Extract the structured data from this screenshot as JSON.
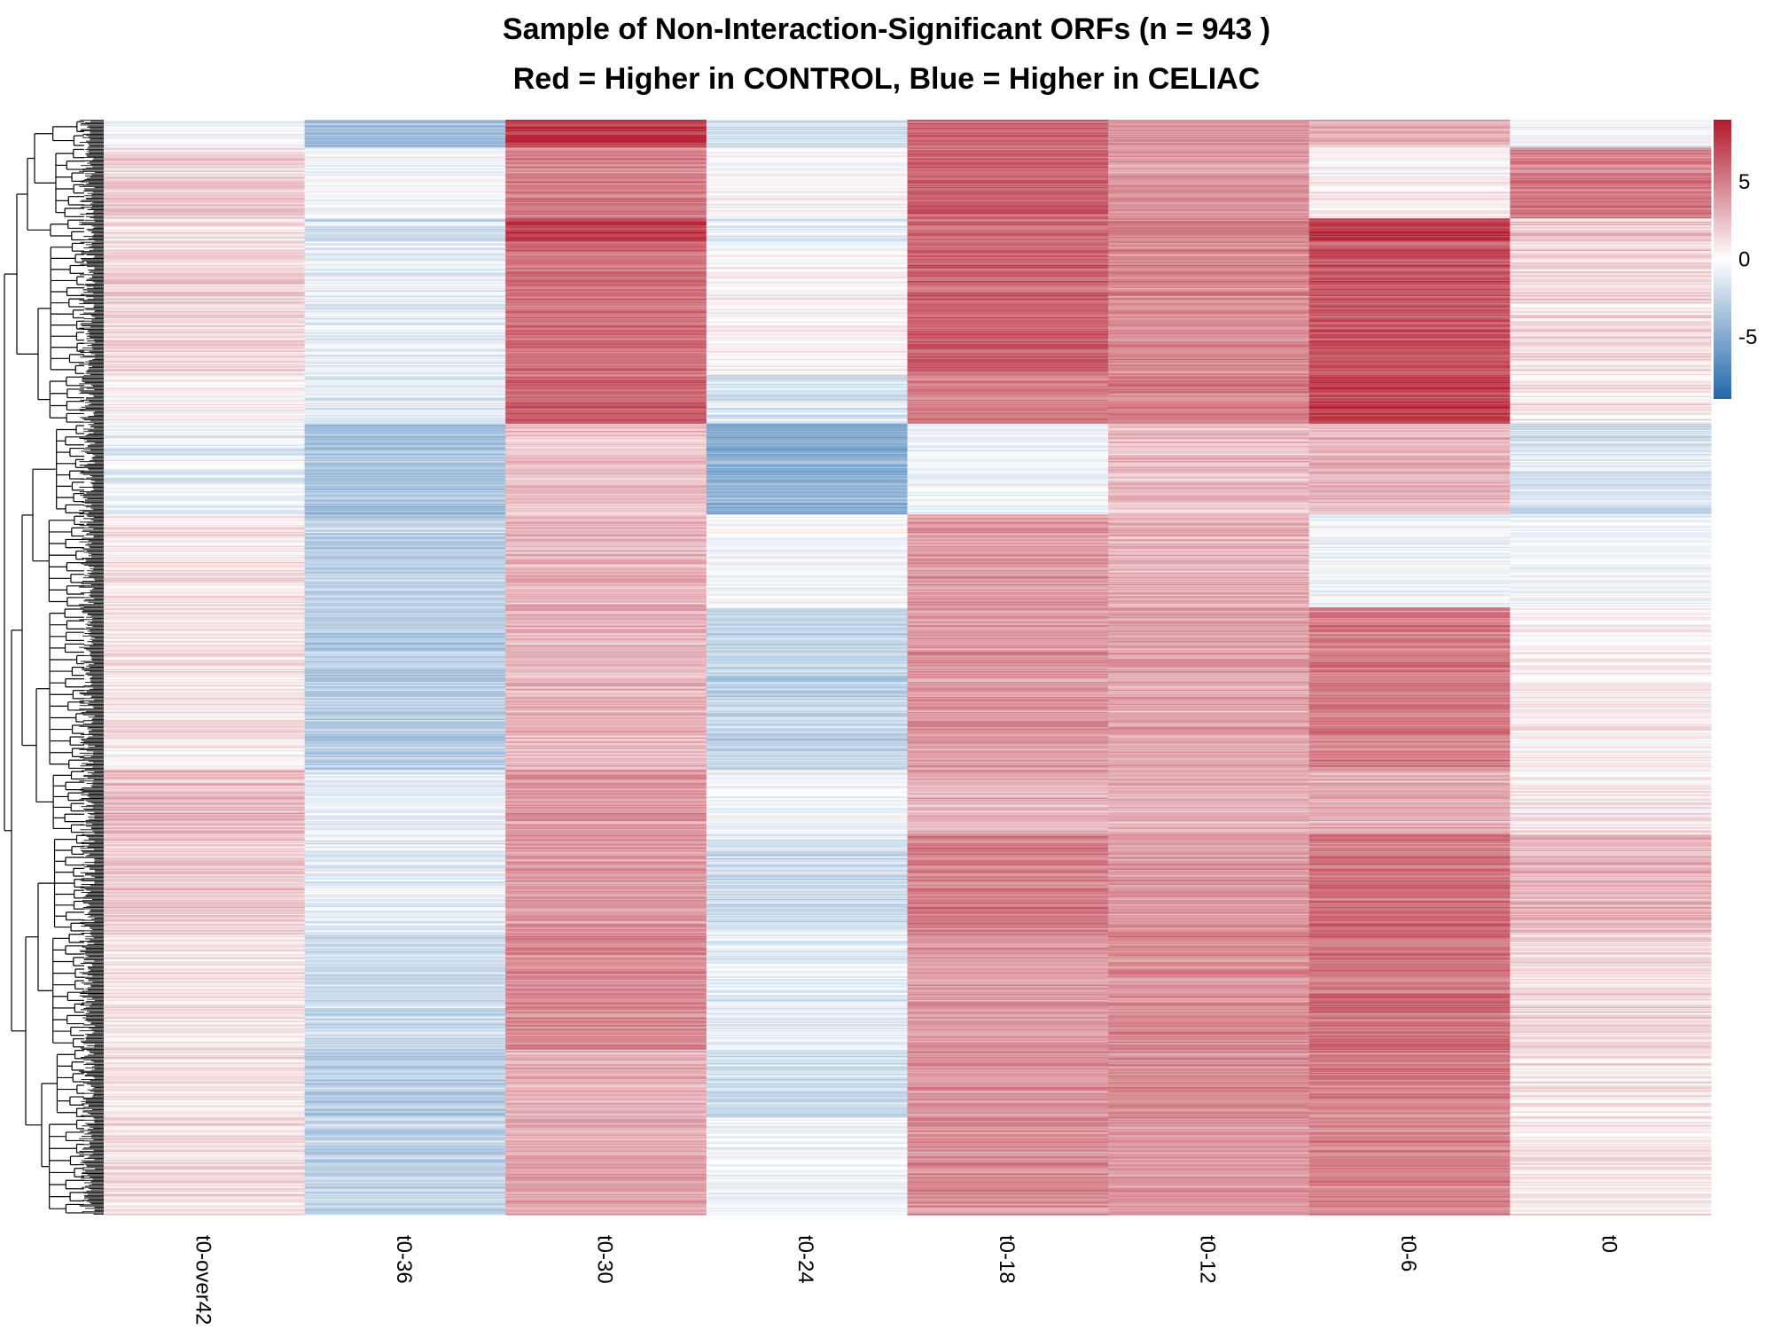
{
  "chart_data": {
    "type": "heatmap",
    "title_line1": "Sample of Non-Interaction-Significant ORFs (n = 943 )",
    "title_line2": "Red = Higher in CONTROL, Blue = Higher in CELIAC",
    "n_rows": 943,
    "columns": [
      "t0-over42",
      "t0-36",
      "t0-30",
      "t0-24",
      "t0-18",
      "t0-12",
      "t0-6",
      "t0"
    ],
    "color_scale": {
      "min": -9,
      "max": 9,
      "low_color": "#2166ac",
      "mid_color": "#ffffff",
      "high_color": "#b2182b",
      "ticks": [
        {
          "value": 5,
          "label": "5"
        },
        {
          "value": 0,
          "label": "0"
        },
        {
          "value": -5,
          "label": "-5"
        }
      ]
    },
    "row_clusters": [
      {
        "rows": [
          0,
          24
        ],
        "values": [
          -0.5,
          -4.0,
          7.5,
          -2.0,
          6.0,
          4.0,
          3.0,
          -0.5
        ]
      },
      {
        "rows": [
          24,
          85
        ],
        "values": [
          1.8,
          -0.3,
          5.0,
          0.2,
          6.0,
          4.0,
          0.5,
          5.0
        ]
      },
      {
        "rows": [
          85,
          105
        ],
        "values": [
          1.0,
          -2.0,
          7.5,
          -1.0,
          5.5,
          5.0,
          7.5,
          2.0
        ]
      },
      {
        "rows": [
          105,
          220
        ],
        "values": [
          1.5,
          -1.0,
          5.5,
          0.3,
          6.0,
          4.5,
          6.5,
          1.5
        ]
      },
      {
        "rows": [
          220,
          262
        ],
        "values": [
          0.3,
          -1.0,
          6.0,
          -1.5,
          5.0,
          5.0,
          7.5,
          1.0
        ]
      },
      {
        "rows": [
          262,
          340
        ],
        "values": [
          -0.8,
          -3.5,
          2.5,
          -4.5,
          -0.5,
          2.5,
          3.0,
          -1.5
        ]
      },
      {
        "rows": [
          340,
          420
        ],
        "values": [
          1.0,
          -2.5,
          3.0,
          -0.3,
          4.0,
          3.0,
          -0.5,
          -0.5
        ]
      },
      {
        "rows": [
          420,
          560
        ],
        "values": [
          0.8,
          -3.0,
          2.8,
          -2.5,
          4.0,
          3.5,
          5.0,
          0.5
        ]
      },
      {
        "rows": [
          560,
          615
        ],
        "values": [
          2.5,
          -1.0,
          4.0,
          -0.5,
          3.0,
          3.0,
          3.0,
          0.8
        ]
      },
      {
        "rows": [
          615,
          700
        ],
        "values": [
          2.0,
          -1.0,
          4.0,
          -2.0,
          5.0,
          4.0,
          5.5,
          3.0
        ]
      },
      {
        "rows": [
          700,
          800
        ],
        "values": [
          1.0,
          -2.0,
          4.5,
          -1.0,
          4.0,
          4.5,
          5.5,
          1.5
        ]
      },
      {
        "rows": [
          800,
          860
        ],
        "values": [
          1.0,
          -3.0,
          3.0,
          -2.0,
          4.0,
          4.5,
          5.0,
          1.0
        ]
      },
      {
        "rows": [
          860,
          943
        ],
        "values": [
          1.5,
          -2.5,
          3.5,
          -0.5,
          4.5,
          4.0,
          5.0,
          1.0
        ]
      }
    ]
  }
}
